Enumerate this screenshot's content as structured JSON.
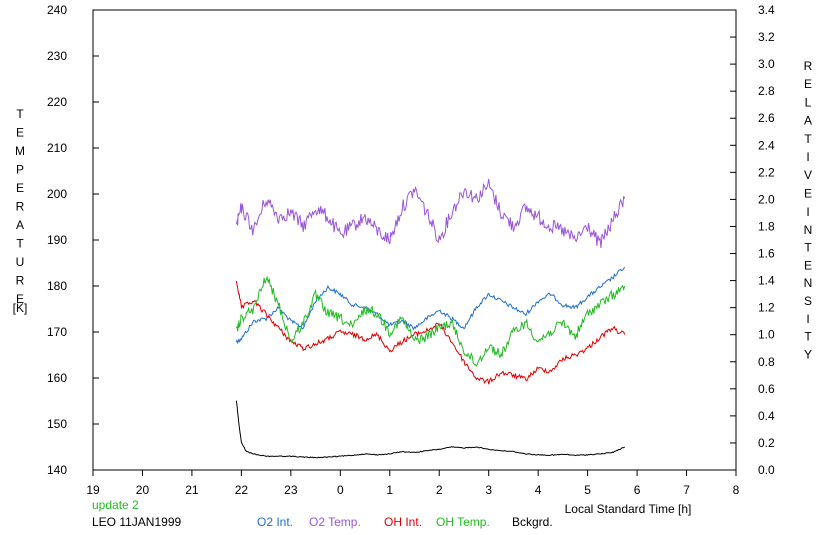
{
  "colors": {
    "o2_int": "#1f6fd0",
    "o2_temp": "#9a55d8",
    "oh_int": "#e00000",
    "oh_temp": "#22bb22",
    "background": "#000000",
    "update_text": "#22bb22",
    "text": "#000000"
  },
  "labels": {
    "left_axis_letters": [
      "T",
      "E",
      "M",
      "P",
      "E",
      "R",
      "A",
      "T",
      "U",
      "R",
      "E"
    ],
    "left_axis_unit": "[K]",
    "right_axis_line1": [
      "R",
      "E",
      "L",
      "A",
      "T",
      "I",
      "V",
      "E"
    ],
    "right_axis_line2": [
      "I",
      "N",
      "T",
      "E",
      "N",
      "S",
      "I",
      "T",
      "Y"
    ],
    "x_axis_label": "Local Standard Time [h]",
    "update": "update 2",
    "station": "LEO 11JAN1999"
  },
  "chart_data": {
    "type": "line",
    "xlabel": "Local Standard Time [h]",
    "ylabel_left": "TEMPERATURE [K]",
    "ylabel_right": "RELATIVE INTENSITY",
    "x_ticks": [
      19,
      20,
      21,
      22,
      23,
      0,
      1,
      2,
      3,
      4,
      5,
      6,
      7,
      8
    ],
    "xlim": [
      19,
      32
    ],
    "ylim_left": [
      140,
      240
    ],
    "ylim_right": [
      0,
      3.4
    ],
    "left_ticks": [
      140,
      150,
      160,
      170,
      180,
      190,
      200,
      210,
      220,
      230,
      240
    ],
    "right_ticks": [
      "0.0",
      "0.2",
      "0.4",
      "0.6",
      "0.8",
      "1.0",
      "1.2",
      "1.4",
      "1.6",
      "1.8",
      "2.0",
      "2.2",
      "2.4",
      "2.6",
      "2.8",
      "3.0",
      "3.2",
      "3.4"
    ],
    "legend": [
      "O2 Int.",
      "O2 Temp.",
      "OH Int.",
      "OH Temp.",
      "Bckgrd."
    ],
    "series": [
      {
        "name": "O2 Int.",
        "axis": "right",
        "color_key": "o2_int",
        "x": [
          21.9,
          22.0,
          22.25,
          22.5,
          22.75,
          23.0,
          23.25,
          23.5,
          23.75,
          24.0,
          24.25,
          24.5,
          24.75,
          25.0,
          25.25,
          25.5,
          25.75,
          26.0,
          26.25,
          26.5,
          26.75,
          27.0,
          27.25,
          27.5,
          27.75,
          28.0,
          28.25,
          28.5,
          28.75,
          29.0,
          29.25,
          29.5,
          29.75
        ],
        "y": [
          0.95,
          0.97,
          1.1,
          1.12,
          1.2,
          1.1,
          1.05,
          1.25,
          1.35,
          1.3,
          1.22,
          1.2,
          1.15,
          1.07,
          1.1,
          1.05,
          1.12,
          1.18,
          1.12,
          1.05,
          1.2,
          1.3,
          1.25,
          1.2,
          1.15,
          1.25,
          1.3,
          1.22,
          1.2,
          1.28,
          1.35,
          1.42,
          1.5
        ]
      },
      {
        "name": "O2 Temp.",
        "axis": "left",
        "color_key": "o2_temp",
        "x": [
          21.9,
          22.0,
          22.25,
          22.5,
          22.75,
          23.0,
          23.25,
          23.5,
          23.75,
          24.0,
          24.25,
          24.5,
          24.75,
          25.0,
          25.25,
          25.5,
          25.75,
          26.0,
          26.25,
          26.5,
          26.75,
          27.0,
          27.25,
          27.5,
          27.75,
          28.0,
          28.25,
          28.5,
          28.75,
          29.0,
          29.25,
          29.5,
          29.75
        ],
        "y": [
          193,
          197,
          192,
          199,
          195,
          196,
          193,
          197,
          195,
          191,
          193,
          195,
          192,
          190,
          197,
          201,
          196,
          190,
          196,
          201,
          199,
          202,
          196,
          193,
          197,
          195,
          193,
          192,
          190,
          193,
          189,
          194,
          199
        ]
      },
      {
        "name": "OH Int.",
        "axis": "right",
        "color_key": "oh_int",
        "x": [
          21.9,
          22.0,
          22.25,
          22.5,
          22.75,
          23.0,
          23.25,
          23.5,
          23.75,
          24.0,
          24.25,
          24.5,
          24.75,
          25.0,
          25.25,
          25.5,
          25.75,
          26.0,
          26.25,
          26.5,
          26.75,
          27.0,
          27.25,
          27.5,
          27.75,
          28.0,
          28.25,
          28.5,
          28.75,
          29.0,
          29.25,
          29.5,
          29.75
        ],
        "y": [
          1.4,
          1.2,
          1.25,
          1.15,
          1.05,
          0.95,
          0.9,
          0.93,
          0.97,
          1.02,
          1.0,
          0.97,
          1.0,
          0.88,
          0.95,
          1.0,
          1.03,
          1.08,
          0.95,
          0.8,
          0.68,
          0.65,
          0.72,
          0.7,
          0.67,
          0.75,
          0.73,
          0.82,
          0.85,
          0.9,
          0.98,
          1.05,
          1.0
        ]
      },
      {
        "name": "OH Temp.",
        "axis": "left",
        "color_key": "oh_temp",
        "x": [
          21.9,
          22.0,
          22.25,
          22.5,
          22.75,
          23.0,
          23.25,
          23.5,
          23.75,
          24.0,
          24.25,
          24.5,
          24.75,
          25.0,
          25.25,
          25.5,
          25.75,
          26.0,
          26.25,
          26.5,
          26.75,
          27.0,
          27.25,
          27.5,
          27.75,
          28.0,
          28.25,
          28.5,
          28.75,
          29.0,
          29.25,
          29.5,
          29.75
        ],
        "y": [
          170,
          173,
          175,
          182,
          176,
          168,
          172,
          178,
          174,
          173,
          171,
          175,
          174,
          170,
          173,
          168,
          169,
          171,
          172,
          166,
          163,
          167,
          165,
          170,
          172,
          168,
          170,
          172,
          169,
          174,
          176,
          178,
          180
        ]
      },
      {
        "name": "Bckgrd.",
        "axis": "left",
        "color_key": "background",
        "x": [
          21.9,
          21.95,
          22.0,
          22.1,
          22.25,
          22.5,
          22.75,
          23.0,
          23.25,
          23.5,
          23.75,
          24.0,
          24.25,
          24.5,
          24.75,
          25.0,
          25.25,
          25.5,
          25.75,
          26.0,
          26.25,
          26.5,
          26.75,
          27.0,
          27.25,
          27.5,
          27.75,
          28.0,
          28.25,
          28.5,
          28.75,
          29.0,
          29.25,
          29.5,
          29.75
        ],
        "y": [
          155,
          150,
          146,
          144,
          143.5,
          143,
          143,
          143,
          142.8,
          142.7,
          142.8,
          143,
          143.2,
          143.5,
          143.3,
          143.5,
          144,
          143.8,
          144.2,
          144.5,
          145,
          144.8,
          145,
          144.5,
          144.2,
          144,
          143.5,
          143.3,
          143.2,
          143.4,
          143.2,
          143.3,
          143.5,
          143.8,
          145
        ]
      }
    ]
  }
}
